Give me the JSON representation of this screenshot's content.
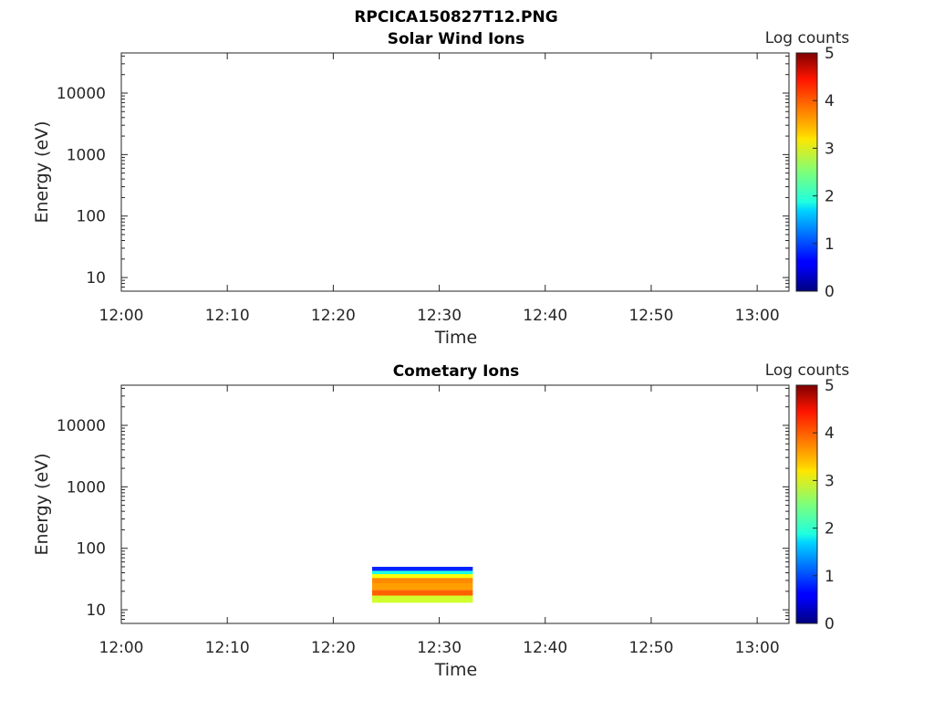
{
  "figure": {
    "title": "RPCICA150827T12.PNG"
  },
  "chart_data": [
    {
      "type": "heatmap",
      "title": "Solar Wind Ions",
      "xlabel": "Time",
      "ylabel": "Energy (eV)",
      "x_ticks": [
        "12:00",
        "12:10",
        "12:20",
        "12:30",
        "12:40",
        "12:50",
        "13:00"
      ],
      "x_range": [
        "12:00",
        "13:03"
      ],
      "y_scale": "log",
      "y_ticks": [
        "10",
        "100",
        "1000",
        "10000"
      ],
      "y_range": [
        6,
        45000
      ],
      "colorbar": {
        "label": "Log counts",
        "min": 0,
        "max": 5,
        "ticks": [
          "0",
          "1",
          "2",
          "3",
          "4",
          "5"
        ],
        "colormap": "jet"
      },
      "blocks": []
    },
    {
      "type": "heatmap",
      "title": "Cometary Ions",
      "xlabel": "Time",
      "ylabel": "Energy (eV)",
      "x_ticks": [
        "12:00",
        "12:10",
        "12:20",
        "12:30",
        "12:40",
        "12:50",
        "13:00"
      ],
      "x_range": [
        "12:00",
        "13:03"
      ],
      "y_scale": "log",
      "y_ticks": [
        "10",
        "100",
        "1000",
        "10000"
      ],
      "y_range": [
        6,
        45000
      ],
      "colorbar": {
        "label": "Log counts",
        "min": 0,
        "max": 5,
        "ticks": [
          "0",
          "1",
          "2",
          "3",
          "4",
          "5"
        ],
        "colormap": "jet"
      },
      "blocks": [
        {
          "t_start": "12:23:40",
          "t_end": "12:33:10",
          "e_low": 13,
          "e_high": 17,
          "log_counts": 2.9
        },
        {
          "t_start": "12:23:40",
          "t_end": "12:33:10",
          "e_low": 17,
          "e_high": 21,
          "log_counts": 3.9
        },
        {
          "t_start": "12:23:40",
          "t_end": "12:33:10",
          "e_low": 21,
          "e_high": 27,
          "log_counts": 3.6
        },
        {
          "t_start": "12:23:40",
          "t_end": "12:33:10",
          "e_low": 27,
          "e_high": 33,
          "log_counts": 3.7
        },
        {
          "t_start": "12:23:40",
          "t_end": "12:33:10",
          "e_low": 33,
          "e_high": 38,
          "log_counts": 3.1
        },
        {
          "t_start": "12:23:40",
          "t_end": "12:33:10",
          "e_low": 38,
          "e_high": 43,
          "log_counts": 2.0
        },
        {
          "t_start": "12:23:40",
          "t_end": "12:33:10",
          "e_low": 43,
          "e_high": 50,
          "log_counts": 0.8
        }
      ]
    }
  ]
}
